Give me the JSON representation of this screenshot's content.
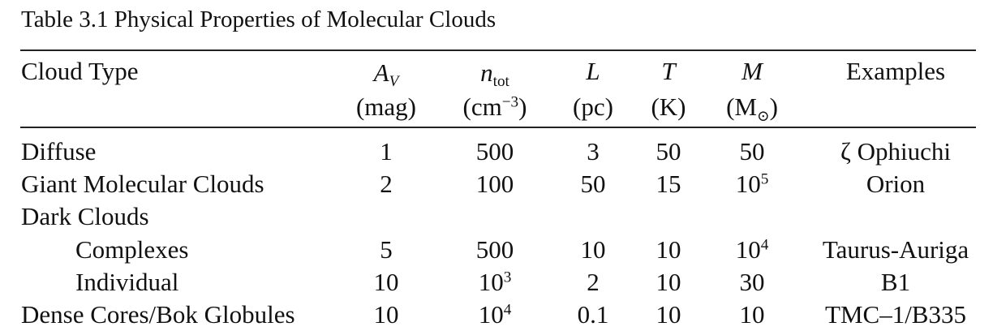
{
  "caption": "Table 3.1  Physical Properties of Molecular Clouds",
  "headers": {
    "cloud_type": "Cloud Type",
    "av": {
      "symbol": "A",
      "sub": "V",
      "unit": "(mag)"
    },
    "ntot": {
      "symbol": "n",
      "sub": "tot",
      "unit_open": "(cm",
      "unit_sup": "−3",
      "unit_close": ")"
    },
    "L": {
      "symbol": "L",
      "unit": "(pc)"
    },
    "T": {
      "symbol": "T",
      "unit": "(K)"
    },
    "M": {
      "symbol": "M",
      "unit_open": "(M",
      "unit_sun": "⊙",
      "unit_close": ")"
    },
    "examples": "Examples"
  },
  "rows": [
    {
      "type": "Diffuse",
      "av": "1",
      "n_base": "500",
      "n_exp": "",
      "L": "3",
      "T": "50",
      "M_base": "50",
      "M_exp": "",
      "example": "ζ Ophiuchi"
    },
    {
      "type": "Giant Molecular Clouds",
      "av": "2",
      "n_base": "100",
      "n_exp": "",
      "L": "50",
      "T": "15",
      "M_base": "10",
      "M_exp": "5",
      "example": "Orion"
    },
    {
      "type": "Dark Clouds",
      "av": "",
      "n_base": "",
      "n_exp": "",
      "L": "",
      "T": "",
      "M_base": "",
      "M_exp": "",
      "example": ""
    },
    {
      "type": "Complexes",
      "av": "5",
      "n_base": "500",
      "n_exp": "",
      "L": "10",
      "T": "10",
      "M_base": "10",
      "M_exp": "4",
      "example": "Taurus-Auriga"
    },
    {
      "type": "Individual",
      "av": "10",
      "n_base": "10",
      "n_exp": "3",
      "L": "2",
      "T": "10",
      "M_base": "30",
      "M_exp": "",
      "example": "B1"
    },
    {
      "type": "Dense Cores/Bok Globules",
      "av": "10",
      "n_base": "10",
      "n_exp": "4",
      "L": "0.1",
      "T": "10",
      "M_base": "10",
      "M_exp": "",
      "example": "TMC–1/B335"
    }
  ]
}
